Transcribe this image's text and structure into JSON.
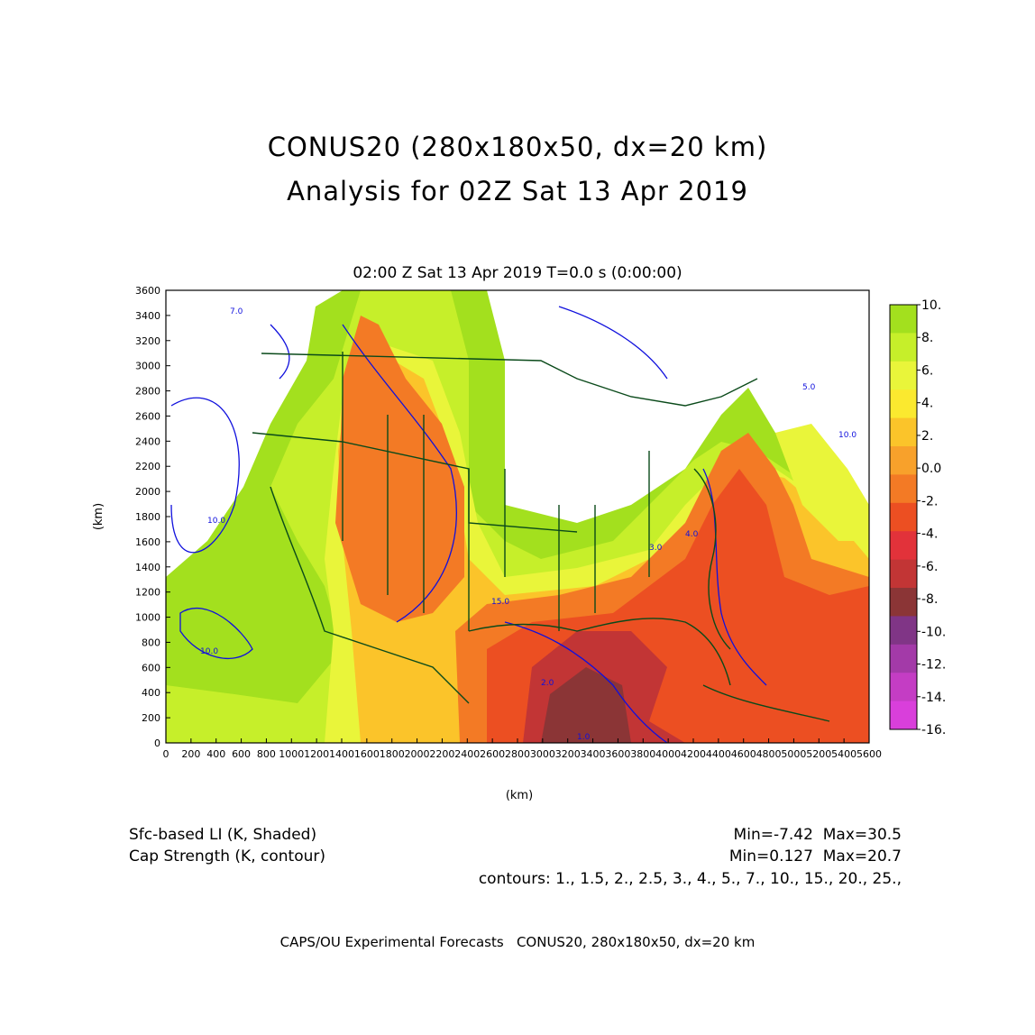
{
  "titles": {
    "line1": "CONUS20 (280x180x50, dx=20 km)",
    "line2": "Analysis for 02Z Sat 13 Apr 2019",
    "valid_time": "02:00 Z Sat 13 Apr 2019    T=0.0 s (0:00:00)"
  },
  "axes": {
    "xlabel": "(km)",
    "ylabel": "(km)",
    "xticks": [
      "0",
      "200",
      "400",
      "600",
      "800",
      "1000",
      "1200",
      "1400",
      "1600",
      "1800",
      "2000",
      "2200",
      "2400",
      "2600",
      "2800",
      "3000",
      "3200",
      "3400",
      "3600",
      "3800",
      "4000",
      "4200",
      "4400",
      "4600",
      "4800",
      "5000",
      "5200",
      "5400",
      "5600"
    ],
    "yticks": [
      "0",
      "200",
      "400",
      "600",
      "800",
      "1000",
      "1200",
      "1400",
      "1600",
      "1800",
      "2000",
      "2200",
      "2400",
      "2600",
      "2800",
      "3000",
      "3200",
      "3400",
      "3600"
    ],
    "xlim": [
      0,
      5600
    ],
    "ylim": [
      0,
      3600
    ]
  },
  "colorbar": {
    "labels": [
      "10.",
      "8.",
      "6.",
      "4.",
      "2.",
      "0.0",
      "-2.",
      "-4.",
      "-6.",
      "-8.",
      "-10.",
      "-12.",
      "-14.",
      "-16."
    ],
    "colors": [
      "#a3e01e",
      "#c6ef2a",
      "#e9f53a",
      "#fbe92f",
      "#fbc42a",
      "#f8a12b",
      "#f37a25",
      "#ec4f22",
      "#e2323a",
      "#c23535",
      "#8b3536",
      "#803586",
      "#a33aa8",
      "#c43dc4",
      "#d93fdb"
    ]
  },
  "contour_labels": [
    "7.0",
    "10.0",
    "1.0",
    "2.0",
    "3.0",
    "4.0",
    "5.0",
    "15.0"
  ],
  "fields": {
    "shaded": "Sfc-based LI (K, Shaded)",
    "contour": "Cap Strength (K, contour)",
    "shaded_stats": "Min=-7.42  Max=30.5",
    "contour_stats": "Min=0.127  Max=20.7",
    "contours": "contours: 1., 1.5, 2., 2.5, 3., 4., 5., 7., 10., 15., 20., 25.,"
  },
  "credit": "CAPS/OU Experimental Forecasts   CONUS20, 280x180x50, dx=20 km"
}
